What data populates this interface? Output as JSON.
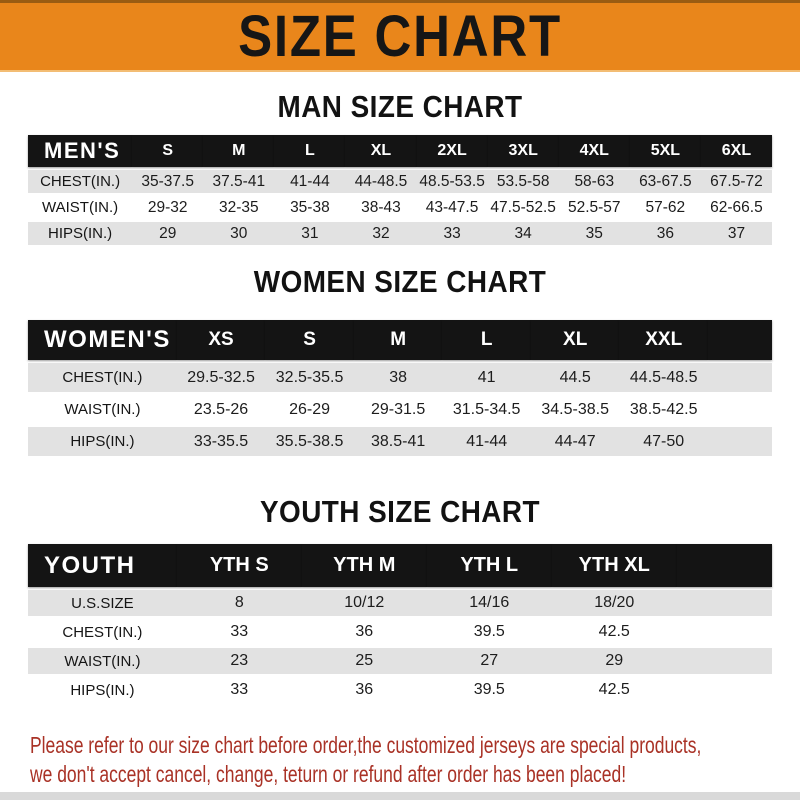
{
  "banner": {
    "title": "SIZE CHART"
  },
  "colors": {
    "banner_orange": "#E9861B",
    "table_header_black": "#141414",
    "row_gray": "#E2E2E2",
    "footer_red": "#A93226"
  },
  "chart_data": [
    {
      "type": "table",
      "title": "MAN SIZE CHART",
      "corner_label": "MEN'S",
      "columns": [
        "S",
        "M",
        "L",
        "XL",
        "2XL",
        "3XL",
        "4XL",
        "5XL",
        "6XL"
      ],
      "rows": [
        {
          "label": "CHEST(IN.)",
          "values": [
            "35-37.5",
            "37.5-41",
            "41-44",
            "44-48.5",
            "48.5-53.5",
            "53.5-58",
            "58-63",
            "63-67.5",
            "67.5-72"
          ]
        },
        {
          "label": "WAIST(IN.)",
          "values": [
            "29-32",
            "32-35",
            "35-38",
            "38-43",
            "43-47.5",
            "47.5-52.5",
            "52.5-57",
            "57-62",
            "62-66.5"
          ]
        },
        {
          "label": "HIPS(IN.)",
          "values": [
            "29",
            "30",
            "31",
            "32",
            "33",
            "34",
            "35",
            "36",
            "37"
          ]
        }
      ]
    },
    {
      "type": "table",
      "title": "WOMEN SIZE CHART",
      "corner_label": "WOMEN'S",
      "columns": [
        "XS",
        "S",
        "M",
        "L",
        "XL",
        "XXL"
      ],
      "rows": [
        {
          "label": "CHEST(IN.)",
          "values": [
            "29.5-32.5",
            "32.5-35.5",
            "38",
            "41",
            "44.5",
            "44.5-48.5"
          ]
        },
        {
          "label": "WAIST(IN.)",
          "values": [
            "23.5-26",
            "26-29",
            "29-31.5",
            "31.5-34.5",
            "34.5-38.5",
            "38.5-42.5"
          ]
        },
        {
          "label": "HIPS(IN.)",
          "values": [
            "33-35.5",
            "35.5-38.5",
            "38.5-41",
            "41-44",
            "44-47",
            "47-50"
          ]
        }
      ]
    },
    {
      "type": "table",
      "title": "YOUTH SIZE CHART",
      "corner_label": "YOUTH",
      "columns": [
        "YTH S",
        "YTH M",
        "YTH L",
        "YTH XL"
      ],
      "rows": [
        {
          "label": "U.S.SIZE",
          "values": [
            "8",
            "10/12",
            "14/16",
            "18/20"
          ]
        },
        {
          "label": "CHEST(IN.)",
          "values": [
            "33",
            "36",
            "39.5",
            "42.5"
          ]
        },
        {
          "label": "WAIST(IN.)",
          "values": [
            "23",
            "25",
            "27",
            "29"
          ]
        },
        {
          "label": "HIPS(IN.)",
          "values": [
            "33",
            "36",
            "39.5",
            "42.5"
          ]
        }
      ]
    }
  ],
  "footer": {
    "line1": "Please refer to our size chart before order,the customized jerseys are special products,",
    "line2": "we don't accept cancel, change, teturn or refund after order has been placed!"
  }
}
